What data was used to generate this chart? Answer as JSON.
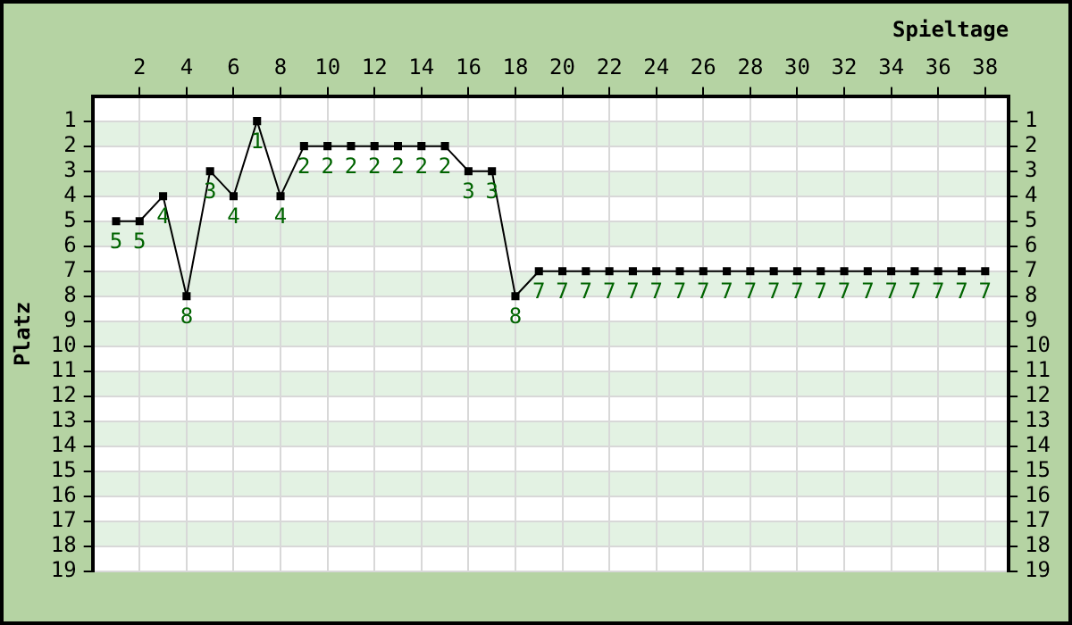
{
  "chart_data": {
    "type": "line",
    "xlabel": "Spieltage",
    "ylabel": "Platz",
    "x": [
      1,
      2,
      3,
      4,
      5,
      6,
      7,
      8,
      9,
      10,
      11,
      12,
      13,
      14,
      15,
      16,
      17,
      18,
      19,
      20,
      21,
      22,
      23,
      24,
      25,
      26,
      27,
      28,
      29,
      30,
      31,
      32,
      33,
      34,
      35,
      36,
      37,
      38
    ],
    "series": [
      {
        "color": "#000000",
        "values": [
          5,
          5,
          4,
          8,
          3,
          4,
          1,
          4,
          2,
          2,
          2,
          2,
          2,
          2,
          2,
          3,
          3,
          8,
          7,
          7,
          7,
          7,
          7,
          7,
          7,
          7,
          7,
          7,
          7,
          7,
          7,
          7,
          7,
          7,
          7,
          7,
          7,
          7
        ]
      }
    ],
    "xlim": [
      0,
      39
    ],
    "xticks": [
      2,
      4,
      6,
      8,
      10,
      12,
      14,
      16,
      18,
      20,
      22,
      24,
      26,
      28,
      30,
      32,
      34,
      36,
      38
    ],
    "ylim": [
      19,
      0
    ],
    "yticks": [
      1,
      2,
      3,
      4,
      5,
      6,
      7,
      8,
      9,
      10,
      11,
      12,
      13,
      14,
      15,
      16,
      17,
      18,
      19
    ],
    "y2lim": [
      19,
      0
    ],
    "y2ticks": [
      1,
      2,
      3,
      4,
      5,
      6,
      7,
      8,
      9,
      10,
      11,
      12,
      13,
      14,
      15,
      16,
      17,
      18,
      19
    ],
    "bands": [
      {
        "axis": "y",
        "from": 1,
        "to": 2,
        "color": "#e3f2e3"
      },
      {
        "axis": "y",
        "from": 3,
        "to": 4,
        "color": "#e3f2e3"
      },
      {
        "axis": "y",
        "from": 5,
        "to": 6,
        "color": "#e3f2e3"
      },
      {
        "axis": "y",
        "from": 7,
        "to": 8,
        "color": "#e3f2e3"
      },
      {
        "axis": "y",
        "from": 9,
        "to": 10,
        "color": "#e3f2e3"
      },
      {
        "axis": "y",
        "from": 11,
        "to": 12,
        "color": "#e3f2e3"
      },
      {
        "axis": "y",
        "from": 13,
        "to": 14,
        "color": "#e3f2e3"
      },
      {
        "axis": "y",
        "from": 15,
        "to": 16,
        "color": "#e3f2e3"
      },
      {
        "axis": "y",
        "from": 17,
        "to": 18,
        "color": "#e3f2e3"
      }
    ],
    "grid": true,
    "marker": "square",
    "line_style": "solid",
    "data_labels": true,
    "legend": false
  }
}
